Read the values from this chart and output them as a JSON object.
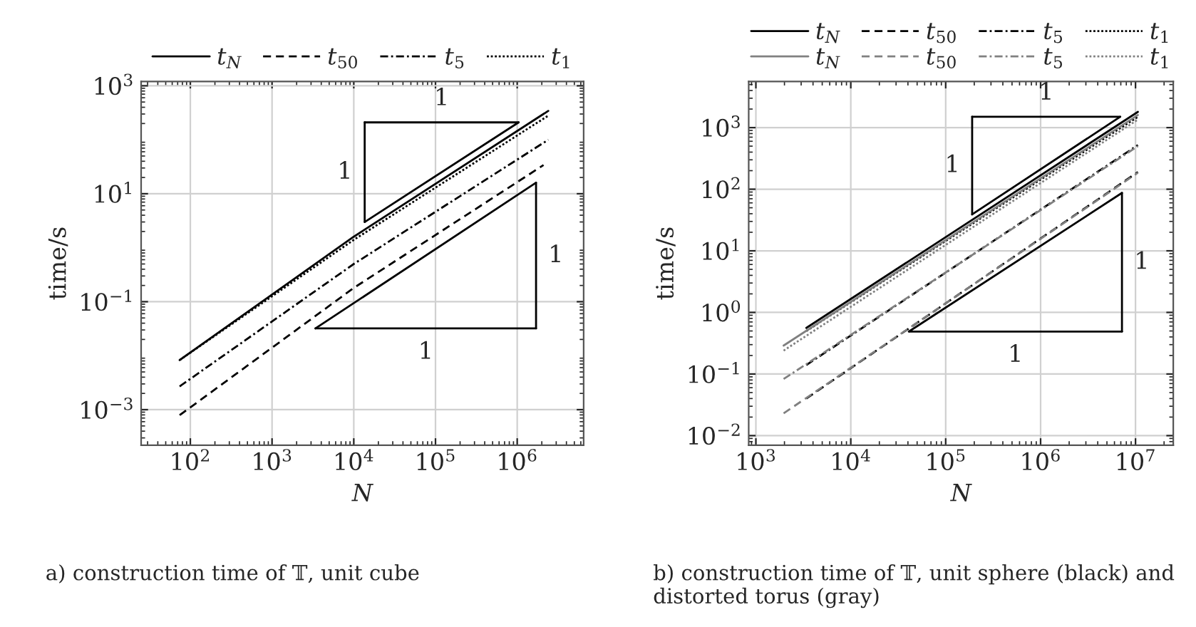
{
  "chart_data": [
    {
      "type": "line",
      "title": "a) construction time of 𝕋, unit cube",
      "xlabel": "N",
      "ylabel": "time/s",
      "log": "xy",
      "grid": true,
      "legend": "top",
      "xlim": [
        25,
        6500000
      ],
      "ylim": [
        0.00022,
        1200
      ],
      "xticks": [
        {
          "value": 100,
          "label": "10$^{2}$"
        },
        {
          "value": 1000,
          "label": "10$^{3}$"
        },
        {
          "value": 10000,
          "label": "10$^{4}$"
        },
        {
          "value": 100000,
          "label": "10$^{5}$"
        },
        {
          "value": 1000000,
          "label": "10$^{6}$"
        }
      ],
      "yticks": [
        {
          "value": 0.001,
          "label": "10$^{−3}$"
        },
        {
          "value": 0.1,
          "label": "10$^{−1}$"
        },
        {
          "value": 10,
          "label": "10$^{1}$"
        },
        {
          "value": 1000,
          "label": "10$^{3}$"
        }
      ],
      "series": [
        {
          "name": "t$_{N}$",
          "color": "#000000",
          "line_style": "solid",
          "x": [
            74,
            10000,
            2400000
          ],
          "values": [
            0.0083,
            1.6,
            343
          ]
        },
        {
          "name": "t$_{50}$",
          "color": "#000000",
          "line_style": "dashed",
          "x": [
            74,
            10000,
            2100000
          ],
          "values": [
            0.00079,
            0.18,
            34
          ]
        },
        {
          "name": "t$_{5}$",
          "color": "#000000",
          "line_style": "dashdot",
          "x": [
            74,
            10000,
            2400000
          ],
          "values": [
            0.0027,
            0.5,
            100
          ]
        },
        {
          "name": "t$_{1}$",
          "color": "#000000",
          "line_style": "dotted",
          "x": [
            74,
            10000,
            2400000
          ],
          "values": [
            0.0083,
            1.4,
            280
          ]
        },
        {
          "color": "#000000",
          "line_style": "solid",
          "x": [
            13600,
            1040000
          ],
          "values": [
            3,
            210
          ]
        },
        {
          "color": "#000000",
          "line_style": "solid",
          "x": [
            13600,
            1040000
          ],
          "values": [
            210,
            210
          ]
        },
        {
          "color": "#000000",
          "line_style": "solid",
          "x": [
            13600,
            13600
          ],
          "values": [
            3,
            210
          ]
        },
        {
          "color": "#000000",
          "line_style": "solid",
          "x": [
            3400,
            1700000
          ],
          "values": [
            0.032,
            16
          ]
        },
        {
          "color": "#000000",
          "line_style": "solid",
          "x": [
            3400,
            1700000
          ],
          "values": [
            0.032,
            0.032
          ]
        },
        {
          "color": "#000000",
          "line_style": "solid",
          "x": [
            1700000,
            1700000
          ],
          "values": [
            0.032,
            16
          ]
        }
      ],
      "annotations": [
        "1",
        "1",
        "1",
        "1"
      ]
    },
    {
      "type": "line",
      "title": "b) construction time of 𝕋, unit sphere (black) and distorted torus (gray)",
      "xlabel": "N",
      "ylabel": "time/s",
      "log": "xy",
      "grid": true,
      "legend": "top",
      "xlim": [
        840,
        25000000
      ],
      "ylim": [
        0.007,
        5600
      ],
      "xticks": [
        {
          "value": 1000,
          "label": "10$^{3}$"
        },
        {
          "value": 10000,
          "label": "10$^{4}$"
        },
        {
          "value": 100000,
          "label": "10$^{5}$"
        },
        {
          "value": 1000000,
          "label": "10$^{6}$"
        },
        {
          "value": 10000000,
          "label": "10$^{7}$"
        }
      ],
      "yticks": [
        {
          "value": 0.01,
          "label": "10$^{−2}$"
        },
        {
          "value": 0.1,
          "label": "10$^{−1}$"
        },
        {
          "value": 1,
          "label": "10$^{0}$"
        },
        {
          "value": 10,
          "label": "10$^{1}$"
        },
        {
          "value": 100,
          "label": "10$^{2}$"
        },
        {
          "value": 1000,
          "label": "10$^{3}$"
        }
      ],
      "series": [
        {
          "name": "t$_{N}$",
          "color": "#000000",
          "line_style": "solid",
          "x": [
            3400,
            10600000
          ],
          "values": [
            0.56,
            1800
          ]
        },
        {
          "name": "t$_{50}$",
          "color": "#000000",
          "line_style": "dashed",
          "x": [
            3400,
            10600000
          ],
          "values": [
            0.04,
            190
          ]
        },
        {
          "name": "t$_{5}$",
          "color": "#000000",
          "line_style": "dashdot",
          "x": [
            3400,
            10600000
          ],
          "values": [
            0.14,
            520
          ]
        },
        {
          "name": "t$_{1}$",
          "color": "#000000",
          "line_style": "dotted",
          "x": [
            3400,
            10600000
          ],
          "values": [
            0.5,
            1500
          ]
        },
        {
          "name": "t$_{N}$",
          "color": "#808080",
          "line_style": "solid",
          "x": [
            1960,
            10600000
          ],
          "values": [
            0.29,
            1600
          ]
        },
        {
          "name": "t$_{50}$",
          "color": "#808080",
          "line_style": "dashed",
          "x": [
            1960,
            10600000
          ],
          "values": [
            0.023,
            185
          ]
        },
        {
          "name": "t$_{5}$",
          "color": "#808080",
          "line_style": "dashdot",
          "x": [
            1960,
            10600000
          ],
          "values": [
            0.083,
            500
          ]
        },
        {
          "name": "t$_{1}$",
          "color": "#808080",
          "line_style": "dotted",
          "x": [
            1960,
            10600000
          ],
          "values": [
            0.24,
            1350
          ]
        },
        {
          "color": "#000000",
          "line_style": "solid",
          "x": [
            190000,
            6900000
          ],
          "values": [
            39,
            1500
          ]
        },
        {
          "color": "#000000",
          "line_style": "solid",
          "x": [
            190000,
            6900000
          ],
          "values": [
            1500,
            1500
          ]
        },
        {
          "color": "#000000",
          "line_style": "solid",
          "x": [
            190000,
            190000
          ],
          "values": [
            39,
            1500
          ]
        },
        {
          "color": "#000000",
          "line_style": "solid",
          "x": [
            41000,
            7200000
          ],
          "values": [
            0.49,
            87
          ]
        },
        {
          "color": "#000000",
          "line_style": "solid",
          "x": [
            41000,
            7200000
          ],
          "values": [
            0.49,
            0.49
          ]
        },
        {
          "color": "#000000",
          "line_style": "solid",
          "x": [
            7200000,
            7200000
          ],
          "values": [
            0.49,
            87
          ]
        }
      ],
      "annotations": [
        "1",
        "1",
        "1",
        "1"
      ]
    }
  ]
}
